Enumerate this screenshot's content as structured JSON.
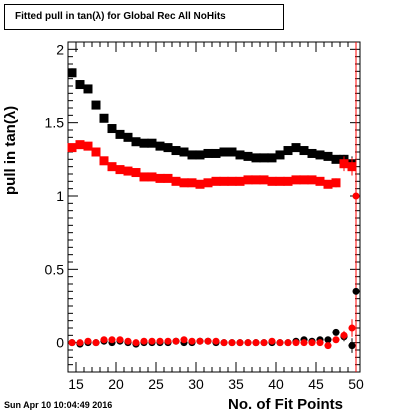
{
  "chart_data": {
    "type": "scatter",
    "title": "Fitted pull in tan(λ) for Global Rec All NoHits",
    "xlabel": "No. of Fit Points",
    "ylabel": "pull in tan(λ)",
    "xlim": [
      14,
      50.5
    ],
    "ylim": [
      -0.2,
      2.05
    ],
    "x_ticks": [
      15,
      20,
      25,
      30,
      35,
      40,
      45,
      50
    ],
    "y_ticks": [
      0,
      0.5,
      1,
      1.5,
      2
    ],
    "x_tick_labels": [
      "15",
      "20",
      "25",
      "30",
      "35",
      "40",
      "45",
      "50"
    ],
    "y_tick_labels": [
      "0",
      "0.5",
      "1",
      "1.5",
      "2"
    ],
    "grid": false,
    "x": [
      14.5,
      15.5,
      16.5,
      17.5,
      18.5,
      19.5,
      20.5,
      21.5,
      22.5,
      23.5,
      24.5,
      25.5,
      26.5,
      27.5,
      28.5,
      29.5,
      30.5,
      31.5,
      32.5,
      33.5,
      34.5,
      35.5,
      36.5,
      37.5,
      38.5,
      39.5,
      40.5,
      41.5,
      42.5,
      43.5,
      44.5,
      45.5,
      46.5,
      47.5,
      48.5,
      49.5
    ],
    "series": [
      {
        "color": "#000000",
        "values": [
          1.84,
          1.76,
          1.73,
          1.62,
          1.53,
          1.46,
          1.42,
          1.4,
          1.37,
          1.36,
          1.36,
          1.34,
          1.33,
          1.31,
          1.3,
          1.28,
          1.28,
          1.29,
          1.29,
          1.3,
          1.3,
          1.28,
          1.27,
          1.26,
          1.26,
          1.26,
          1.28,
          1.31,
          1.33,
          1.31,
          1.29,
          1.28,
          1.27,
          1.25,
          1.25,
          1.22
        ],
        "errors": [
          0.03,
          0.03,
          0.02,
          0.02,
          0.02,
          0.02,
          0.01,
          0.01,
          0.01,
          0.01,
          0.01,
          0.01,
          0.01,
          0.01,
          0.01,
          0.01,
          0.01,
          0.01,
          0.01,
          0.01,
          0.01,
          0.01,
          0.01,
          0.01,
          0.01,
          0.01,
          0.01,
          0.01,
          0.01,
          0.01,
          0.01,
          0.02,
          0.02,
          0.02,
          0.03,
          0.05
        ]
      },
      {
        "color": "#ff0000",
        "values": [
          1.33,
          1.35,
          1.34,
          1.3,
          1.24,
          1.2,
          1.18,
          1.17,
          1.16,
          1.13,
          1.13,
          1.12,
          1.12,
          1.1,
          1.09,
          1.09,
          1.08,
          1.09,
          1.1,
          1.1,
          1.1,
          1.1,
          1.11,
          1.11,
          1.11,
          1.1,
          1.1,
          1.1,
          1.11,
          1.11,
          1.11,
          1.1,
          1.08,
          1.09,
          1.22,
          1.2
        ],
        "errors": [
          0.02,
          0.02,
          0.02,
          0.02,
          0.02,
          0.01,
          0.01,
          0.01,
          0.01,
          0.01,
          0.01,
          0.01,
          0.01,
          0.01,
          0.01,
          0.01,
          0.01,
          0.01,
          0.01,
          0.01,
          0.01,
          0.01,
          0.01,
          0.01,
          0.01,
          0.01,
          0.01,
          0.01,
          0.01,
          0.01,
          0.01,
          0.01,
          0.02,
          0.03,
          0.05,
          0.06
        ]
      },
      {
        "color": "#000000",
        "values": [
          0.0,
          -0.01,
          0.0,
          0.0,
          0.01,
          0.0,
          0.01,
          0.0,
          -0.01,
          0.0,
          0.0,
          0.0,
          0.0,
          0.01,
          0.0,
          0.0,
          0.01,
          0.01,
          0.0,
          0.0,
          0.0,
          0.0,
          0.0,
          0.0,
          0.0,
          0.0,
          0.0,
          0.0,
          0.01,
          0.02,
          0.01,
          0.02,
          0.02,
          0.07,
          0.04,
          -0.02
        ],
        "errors": [
          0.02,
          0.02,
          0.02,
          0.02,
          0.01,
          0.01,
          0.01,
          0.01,
          0.01,
          0.01,
          0.01,
          0.01,
          0.01,
          0.01,
          0.01,
          0.01,
          0.01,
          0.01,
          0.01,
          0.01,
          0.01,
          0.01,
          0.01,
          0.01,
          0.01,
          0.01,
          0.01,
          0.01,
          0.01,
          0.01,
          0.01,
          0.02,
          0.02,
          0.02,
          0.03,
          0.05
        ]
      },
      {
        "color": "#ff0000",
        "values": [
          0.0,
          0.0,
          0.01,
          0.0,
          0.02,
          0.02,
          0.02,
          0.01,
          0.0,
          0.01,
          0.01,
          0.01,
          0.01,
          0.01,
          0.02,
          0.01,
          0.01,
          0.01,
          0.01,
          0.0,
          0.0,
          0.0,
          0.0,
          0.0,
          0.0,
          0.01,
          0.0,
          0.0,
          0.0,
          0.0,
          0.0,
          0.0,
          -0.02,
          0.02,
          0.05,
          0.1
        ],
        "errors": [
          0.01,
          0.01,
          0.01,
          0.01,
          0.01,
          0.01,
          0.01,
          0.01,
          0.01,
          0.01,
          0.01,
          0.01,
          0.01,
          0.01,
          0.01,
          0.01,
          0.01,
          0.01,
          0.01,
          0.01,
          0.01,
          0.01,
          0.01,
          0.01,
          0.01,
          0.01,
          0.01,
          0.01,
          0.01,
          0.01,
          0.01,
          0.01,
          0.02,
          0.02,
          0.03,
          0.06
        ]
      }
    ],
    "extra_points": [
      {
        "x": 50.0,
        "value": 1.0,
        "color": "#ff0000",
        "error": 0.55
      },
      {
        "x": 50.0,
        "value": 0.35,
        "color": "#000000",
        "error": 0.02
      }
    ]
  },
  "footer": {
    "timestamp": "Sun Apr 10 10:04:49 2016"
  }
}
